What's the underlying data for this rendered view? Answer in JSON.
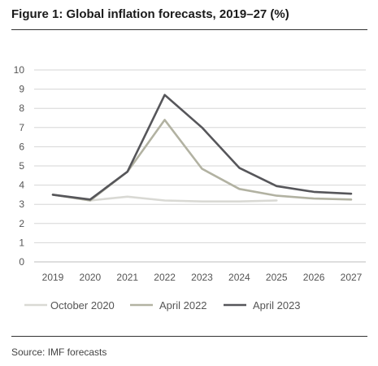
{
  "figure": {
    "title": "Figure 1: Global inflation forecasts, 2019–27 (%)",
    "source": "Source: IMF forecasts"
  },
  "chart_data": {
    "type": "line",
    "title": "Figure 1: Global inflation forecasts, 2019–27 (%)",
    "xlabel": "",
    "ylabel": "",
    "x": [
      2019,
      2020,
      2021,
      2022,
      2023,
      2024,
      2025,
      2026,
      2027
    ],
    "ylim": [
      0,
      10
    ],
    "yticks": [
      0,
      1,
      2,
      3,
      4,
      5,
      6,
      7,
      8,
      9,
      10
    ],
    "grid": true,
    "legend_position": "bottom",
    "series": [
      {
        "name": "October 2020",
        "color": "#d9d9d4",
        "x": [
          2019,
          2020,
          2021,
          2022,
          2023,
          2024,
          2025
        ],
        "values": [
          3.5,
          3.2,
          3.4,
          3.2,
          3.15,
          3.15,
          3.2
        ]
      },
      {
        "name": "April 2022",
        "color": "#b2b2a2",
        "x": [
          2019,
          2020,
          2021,
          2022,
          2023,
          2024,
          2025,
          2026,
          2027
        ],
        "values": [
          3.5,
          3.2,
          4.7,
          7.4,
          4.85,
          3.8,
          3.45,
          3.3,
          3.25
        ]
      },
      {
        "name": "April 2023",
        "color": "#56565a",
        "x": [
          2019,
          2020,
          2021,
          2022,
          2023,
          2024,
          2025,
          2026,
          2027
        ],
        "values": [
          3.5,
          3.25,
          4.7,
          8.7,
          7.0,
          4.9,
          3.95,
          3.65,
          3.55
        ]
      }
    ]
  }
}
